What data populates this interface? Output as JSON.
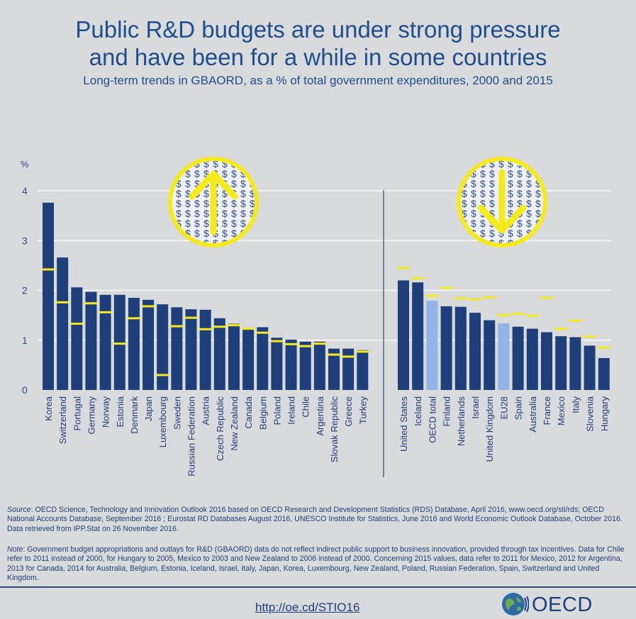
{
  "header": {
    "title_line1": "Public R&D budgets are under strong pressure",
    "title_line2": "and have been for a while in some countries",
    "subtitle": "Long-term trends in GBAORD, as a % of total government expenditures, 2000 and 2015"
  },
  "footer": {
    "source_label": "Source",
    "source_text": ": OECD Science, Technology and Innovation Outlook 2016 based on OECD Research and Development Statistics (RDS) Database, April 2016, www.oecd.org/sti/rds; OECD National Accounts Database, September 2016 ; Eurostat RD Databases August 2016, UNESCO Institute for Statistics, June 2016 and World Economic Outlook Database, October 2016. Data retrieved from IPP.Stat on 26 November 2016.",
    "note_label": "Note",
    "note_text": ": Government budget appropriations and outlays for R&D (GBAORD) data do not reflect indirect public support to business innovation, provided through tax incentives. Data for Chile refer to 2011 instead of 2000, for Hungary to 2005, Mexico to 2003 and New Zealand to 2006 instead of 2000. Concerning 2015 values, data refer to 2011 for Mexico, 2012 for Argentina, 2013 for Canada, 2014 for Australia, Belgium, Estonia, Iceland, Israel, Italy, Japan, Korea, Luxembourg, New Zealand, Poland, Russian Federation, Spain, Switzerland and United Kingdom.",
    "link": "http://oe.cd/STIO16",
    "logo_text": "OECD"
  },
  "colors": {
    "bar": "#1f3f7a",
    "bar_aggregate": "#93b4e6",
    "marker_2000": "#f5ea1a",
    "axis_text": "#2b4a8a",
    "gridline": "#ffffff",
    "background": "#d9dadb"
  },
  "icons": {
    "up_panel": "up-arrow-dollar-coin-icon",
    "down_panel": "down-arrow-dollar-coin-icon"
  },
  "chart_data": {
    "type": "bar",
    "ylabel": "%",
    "ylim": [
      0,
      4
    ],
    "yticks": [
      0,
      1,
      2,
      3,
      4
    ],
    "grid": true,
    "legend": "none",
    "series_names_not_printed": true,
    "groups": [
      {
        "name": "increase",
        "categories": [
          "Korea",
          "Switzerland",
          "Portugal",
          "Germany",
          "Norway",
          "Estonia",
          "Denmark",
          "Japan",
          "Luxembourg",
          "Sweden",
          "Russian Federation",
          "Austria",
          "Czech Republic",
          "New Zealand",
          "Canada",
          "Belgium",
          "Poland",
          "Ireland",
          "Chile",
          "Argentina",
          "Slovak Republic",
          "Greece",
          "Turkey"
        ],
        "values_2015": [
          3.76,
          2.66,
          2.06,
          1.97,
          1.91,
          1.91,
          1.85,
          1.81,
          1.72,
          1.66,
          1.62,
          1.61,
          1.44,
          1.33,
          1.25,
          1.26,
          1.05,
          1.01,
          0.97,
          0.97,
          0.83,
          0.83,
          0.8
        ],
        "values_2000": [
          2.42,
          1.76,
          1.33,
          1.74,
          1.56,
          0.93,
          1.44,
          1.68,
          0.3,
          1.28,
          1.45,
          1.22,
          1.27,
          1.3,
          1.23,
          1.15,
          0.98,
          0.92,
          0.88,
          0.93,
          0.71,
          0.67,
          0.77
        ],
        "aggregate": []
      },
      {
        "name": "decrease",
        "categories": [
          "United States",
          "Iceland",
          "OECD total",
          "Finland",
          "Netherlands",
          "Israel",
          "United Kingdom",
          "EU28",
          "Spain",
          "Australia",
          "France",
          "Mexico",
          "Italy",
          "Slovenia",
          "Hungary"
        ],
        "values_2015": [
          2.2,
          2.16,
          1.79,
          1.68,
          1.67,
          1.55,
          1.4,
          1.34,
          1.27,
          1.23,
          1.16,
          1.08,
          1.06,
          0.89,
          0.64
        ],
        "values_2000": [
          2.45,
          2.24,
          1.89,
          2.05,
          1.84,
          1.82,
          1.86,
          1.5,
          1.53,
          1.49,
          1.85,
          1.23,
          1.39,
          1.07,
          0.85
        ],
        "aggregate": [
          "OECD total",
          "EU28"
        ]
      }
    ]
  }
}
